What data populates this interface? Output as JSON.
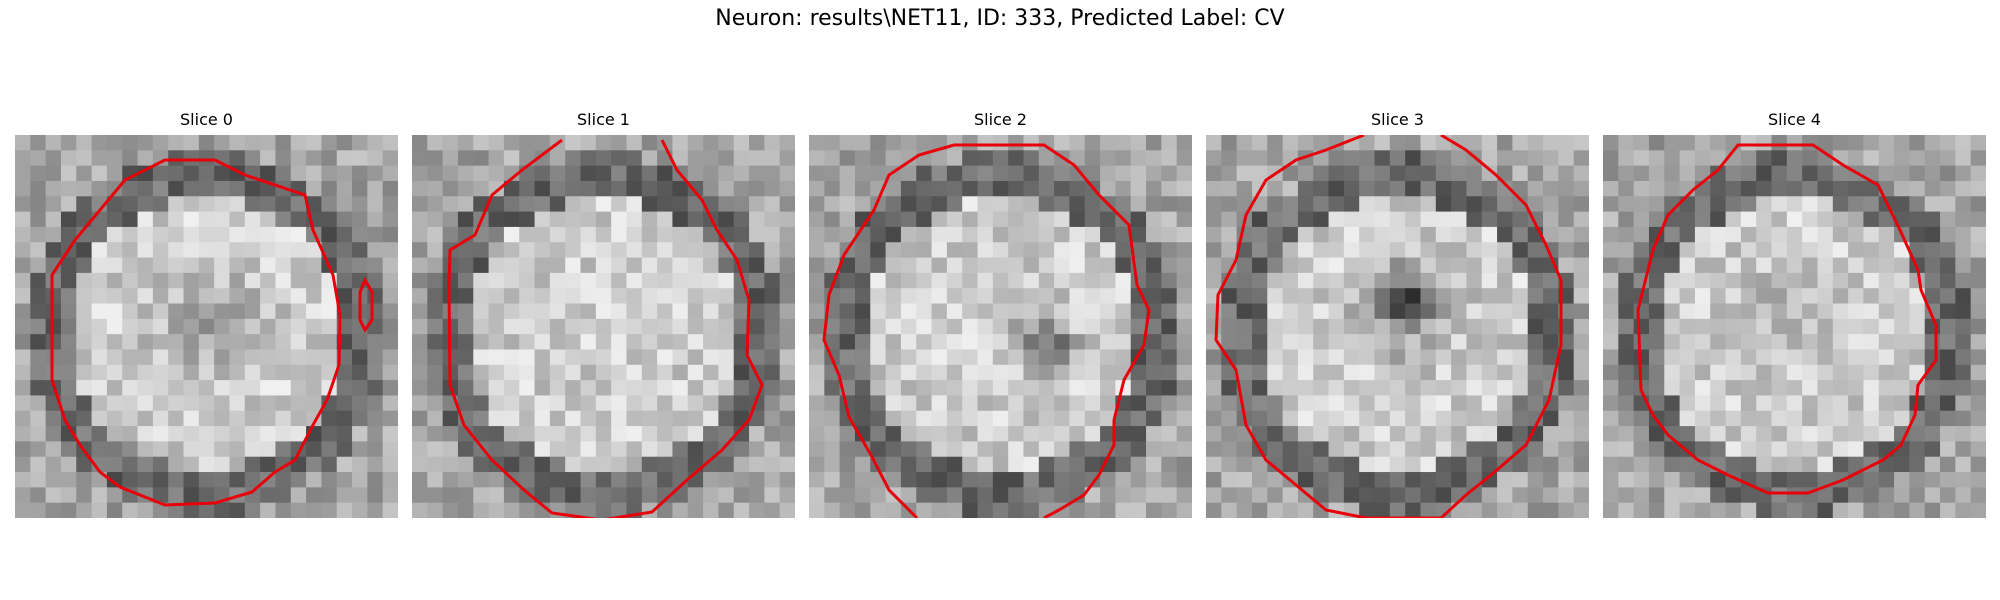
{
  "figure": {
    "title": "Neuron: results\\NET11, ID: 333, Predicted Label: CV",
    "contour_color": "#e8000b",
    "slices": [
      {
        "title": "Slice 0"
      },
      {
        "title": "Slice 1"
      },
      {
        "title": "Slice 2"
      },
      {
        "title": "Slice 3"
      },
      {
        "title": "Slice 4"
      }
    ]
  }
}
